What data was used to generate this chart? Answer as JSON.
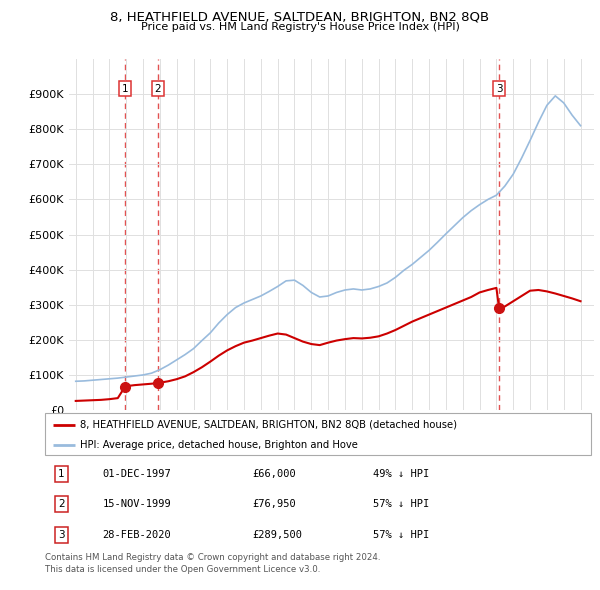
{
  "title": "8, HEATHFIELD AVENUE, SALTDEAN, BRIGHTON, BN2 8QB",
  "subtitle": "Price paid vs. HM Land Registry's House Price Index (HPI)",
  "property_label": "8, HEATHFIELD AVENUE, SALTDEAN, BRIGHTON, BN2 8QB (detached house)",
  "hpi_label": "HPI: Average price, detached house, Brighton and Hove",
  "sale_info": [
    [
      "1",
      "01-DEC-1997",
      "£66,000",
      "49% ↓ HPI"
    ],
    [
      "2",
      "15-NOV-1999",
      "£76,950",
      "57% ↓ HPI"
    ],
    [
      "3",
      "28-FEB-2020",
      "£289,500",
      "57% ↓ HPI"
    ]
  ],
  "copyright_text": "Contains HM Land Registry data © Crown copyright and database right 2024.\nThis data is licensed under the Open Government Licence v3.0.",
  "property_color": "#cc0000",
  "hpi_color": "#99bbdd",
  "vline_color": "#dd3333",
  "grid_color": "#e0e0e0",
  "ylim": [
    0,
    1000000
  ],
  "yticks": [
    0,
    100000,
    200000,
    300000,
    400000,
    500000,
    600000,
    700000,
    800000,
    900000
  ],
  "sale_year_floats": [
    1997.92,
    1999.88,
    2020.16
  ],
  "sale_prices": [
    66000,
    76950,
    289500
  ],
  "sale_labels": [
    "1",
    "2",
    "3"
  ],
  "hpi_x": [
    1995.0,
    1995.5,
    1996.0,
    1996.5,
    1997.0,
    1997.5,
    1998.0,
    1998.5,
    1999.0,
    1999.5,
    2000.0,
    2000.5,
    2001.0,
    2001.5,
    2002.0,
    2002.5,
    2003.0,
    2003.5,
    2004.0,
    2004.5,
    2005.0,
    2005.5,
    2006.0,
    2006.5,
    2007.0,
    2007.5,
    2008.0,
    2008.5,
    2009.0,
    2009.5,
    2010.0,
    2010.5,
    2011.0,
    2011.5,
    2012.0,
    2012.5,
    2013.0,
    2013.5,
    2014.0,
    2014.5,
    2015.0,
    2015.5,
    2016.0,
    2016.5,
    2017.0,
    2017.5,
    2018.0,
    2018.5,
    2019.0,
    2019.5,
    2020.0,
    2020.5,
    2021.0,
    2021.5,
    2022.0,
    2022.5,
    2023.0,
    2023.5,
    2024.0,
    2024.5,
    2025.0
  ],
  "hpi_y": [
    82000,
    83000,
    85000,
    87000,
    89000,
    91000,
    94000,
    97000,
    100000,
    105000,
    115000,
    128000,
    143000,
    158000,
    175000,
    198000,
    220000,
    248000,
    272000,
    292000,
    305000,
    315000,
    325000,
    338000,
    352000,
    368000,
    370000,
    355000,
    335000,
    322000,
    325000,
    335000,
    342000,
    345000,
    342000,
    345000,
    352000,
    362000,
    378000,
    398000,
    415000,
    435000,
    455000,
    478000,
    502000,
    525000,
    548000,
    568000,
    585000,
    600000,
    612000,
    638000,
    672000,
    718000,
    768000,
    820000,
    868000,
    895000,
    875000,
    840000,
    810000
  ],
  "prop_x": [
    1995.0,
    1995.5,
    1996.0,
    1996.5,
    1997.0,
    1997.5,
    1997.92,
    1998.0,
    1998.5,
    1999.0,
    1999.5,
    1999.88,
    2000.0,
    2000.5,
    2001.0,
    2001.5,
    2002.0,
    2002.5,
    2003.0,
    2003.5,
    2004.0,
    2004.5,
    2005.0,
    2005.5,
    2006.0,
    2006.5,
    2007.0,
    2007.5,
    2008.0,
    2008.5,
    2009.0,
    2009.5,
    2010.0,
    2010.5,
    2011.0,
    2011.5,
    2012.0,
    2012.5,
    2013.0,
    2013.5,
    2014.0,
    2014.5,
    2015.0,
    2015.5,
    2016.0,
    2016.5,
    2017.0,
    2017.5,
    2018.0,
    2018.5,
    2019.0,
    2019.5,
    2020.0,
    2020.16,
    2020.5,
    2021.0,
    2021.5,
    2022.0,
    2022.5,
    2023.0,
    2023.5,
    2024.0,
    2024.5,
    2025.0
  ],
  "prop_y": [
    26000,
    27000,
    28000,
    29000,
    31000,
    34000,
    66000,
    68000,
    71000,
    73000,
    75000,
    76950,
    78000,
    82000,
    88000,
    96000,
    108000,
    122000,
    138000,
    155000,
    170000,
    182000,
    192000,
    198000,
    205000,
    212000,
    218000,
    215000,
    205000,
    195000,
    188000,
    185000,
    192000,
    198000,
    202000,
    205000,
    204000,
    206000,
    210000,
    218000,
    228000,
    240000,
    252000,
    262000,
    272000,
    282000,
    292000,
    302000,
    312000,
    322000,
    335000,
    342000,
    348000,
    289500,
    295000,
    310000,
    325000,
    340000,
    342000,
    338000,
    332000,
    325000,
    318000,
    310000
  ]
}
